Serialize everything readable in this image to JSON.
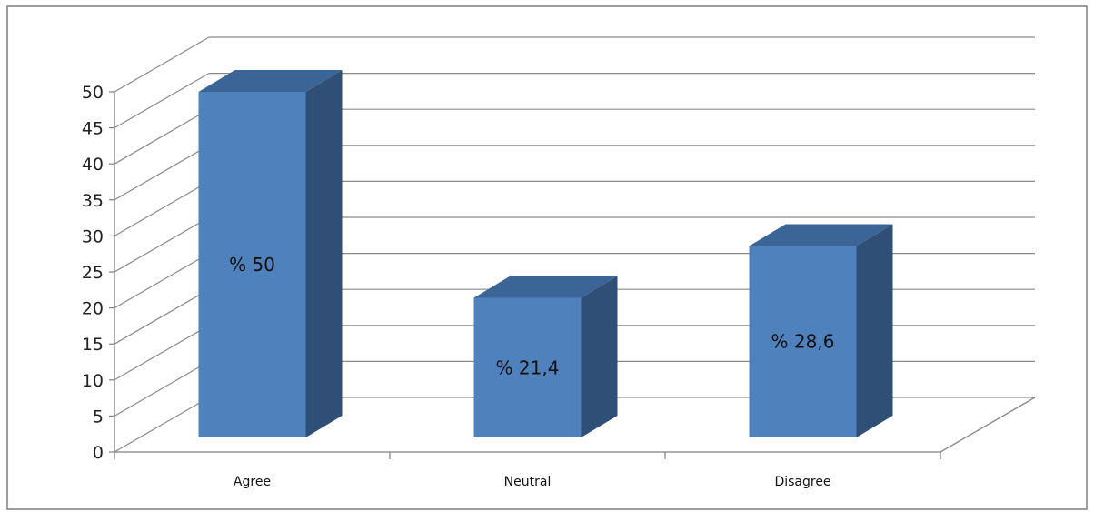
{
  "chart_data": {
    "type": "bar",
    "style": "3d-column",
    "title": "",
    "xlabel": "",
    "ylabel": "",
    "categories": [
      "Agree",
      "Neutral",
      "Disagree"
    ],
    "values": [
      50,
      21.4,
      28.6
    ],
    "data_labels": [
      "% 50",
      "% 21,4",
      "% 28,6"
    ],
    "ylim": [
      0,
      50
    ],
    "ytick_step": 5,
    "grid": true,
    "legend": "none",
    "colors": {
      "bar_front": "#4F81BD",
      "bar_side": "#2F4F77",
      "bar_top": "#3B6597",
      "grid": "#8A8A8A",
      "frame": "#7F7F7F"
    }
  }
}
